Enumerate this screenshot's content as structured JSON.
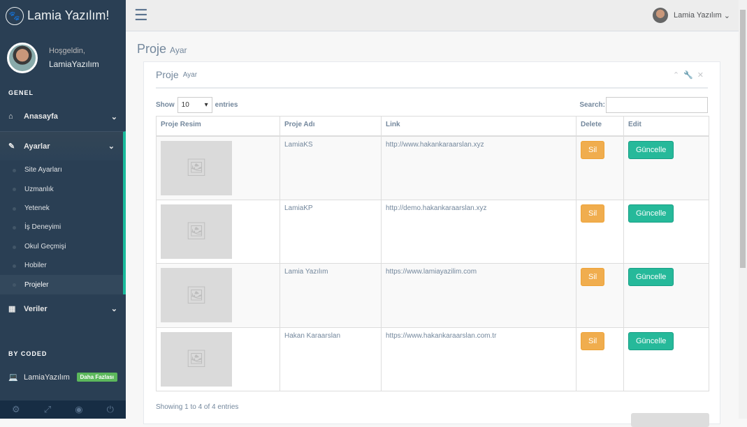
{
  "brand": {
    "title": "Lamia Yazılım!"
  },
  "profile": {
    "welcome": "Hoşgeldin,",
    "name": "LamiaYazılım"
  },
  "sidebar": {
    "section1": "GENEL",
    "items": [
      {
        "label": "Anasayfa"
      },
      {
        "label": "Ayarlar"
      },
      {
        "label": "Veriler"
      }
    ],
    "sub": [
      "Site Ayarları",
      "Uzmanlık",
      "Yetenek",
      "İş Deneyimi",
      "Okul Geçmişi",
      "Hobiler",
      "Projeler"
    ],
    "section2": "BY CODED",
    "coded": "LamiaYazılım",
    "badge": "Daha Fazlası"
  },
  "topbar": {
    "user": "Lamia Yazılım"
  },
  "page": {
    "title": "Proje",
    "subtitle": "Ayar"
  },
  "panel": {
    "title": "Proje",
    "subtitle": "Ayar"
  },
  "table": {
    "show": "Show",
    "entries_value": "10",
    "entries": "entries",
    "search": "Search:",
    "search_value": "",
    "headers": [
      "Proje Resim",
      "Proje Adı",
      "Link",
      "Delete",
      "Edit"
    ],
    "rows": [
      {
        "name": "LamiaKS",
        "link": "http://www.hakankaraarslan.xyz"
      },
      {
        "name": "LamiaKP",
        "link": "http://demo.hakankaraarslan.xyz"
      },
      {
        "name": "Lamia Yazılım",
        "link": "https://www.lamiayazilim.com"
      },
      {
        "name": "Hakan Karaarslan",
        "link": "https://www.hakankaraarslan.com.tr"
      }
    ],
    "delete_label": "Sil",
    "edit_label": "Güncelle",
    "info": "Showing 1 to 4 of 4 entries"
  },
  "colors": {
    "sidebar": "#2A3F54",
    "accent": "#1ABB9C",
    "warning": "#F0AD4E",
    "success": "#26B99A"
  }
}
